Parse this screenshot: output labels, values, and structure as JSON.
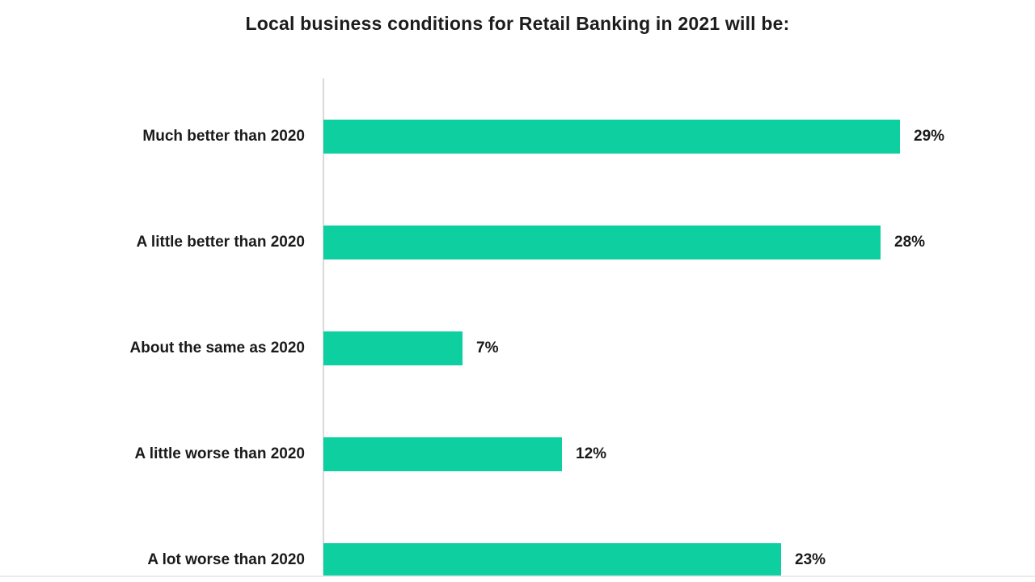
{
  "title": "Local business conditions for Retail Banking in 2021 will be:",
  "chart_data": {
    "type": "bar",
    "orientation": "horizontal",
    "title": "Local business conditions for Retail Banking in 2021 will be:",
    "categories": [
      "Much better than 2020",
      "A little better than 2020",
      "About the same as 2020",
      "A little worse than 2020",
      "A lot worse than 2020"
    ],
    "values": [
      29,
      28,
      7,
      12,
      23
    ],
    "value_labels": [
      "29%",
      "28%",
      "7%",
      "12%",
      "23%"
    ],
    "unit": "%",
    "xlim": [
      0,
      30
    ],
    "grid": false,
    "legend": false,
    "bar_color": "#0dcfa0",
    "axis_line_color": "#d9d9d9",
    "text_color": "#1a1a1a",
    "background_color": "#ffffff"
  }
}
